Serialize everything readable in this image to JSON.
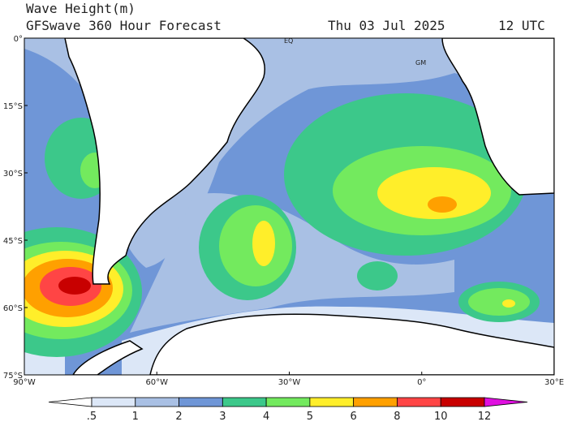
{
  "header": {
    "title": "Wave Height(m)",
    "subtitle": "GFSwave 360 Hour Forecast",
    "date": "Thu 03 Jul 2025",
    "time": "12 UTC"
  },
  "map": {
    "lat_labels": [
      "0°",
      "15°S",
      "30°S",
      "45°S",
      "60°S",
      "75°S"
    ],
    "lon_labels": [
      "90°W",
      "60°W",
      "30°W",
      "0°",
      "30°E"
    ],
    "annotations": [
      "EQ",
      "GM"
    ]
  },
  "colorbar": {
    "levels": [
      {
        "value": 0.5,
        "label": ".5"
      },
      1,
      2,
      3,
      4,
      5,
      6,
      8,
      10,
      12
    ],
    "colors": [
      "#ffffff",
      "#dce7f7",
      "#a9c0e4",
      "#6f96d7",
      "#3cc88a",
      "#73ea5e",
      "#ffee2a",
      "#ffa000",
      "#ff4545",
      "#c80000",
      "#e010e0"
    ]
  }
}
